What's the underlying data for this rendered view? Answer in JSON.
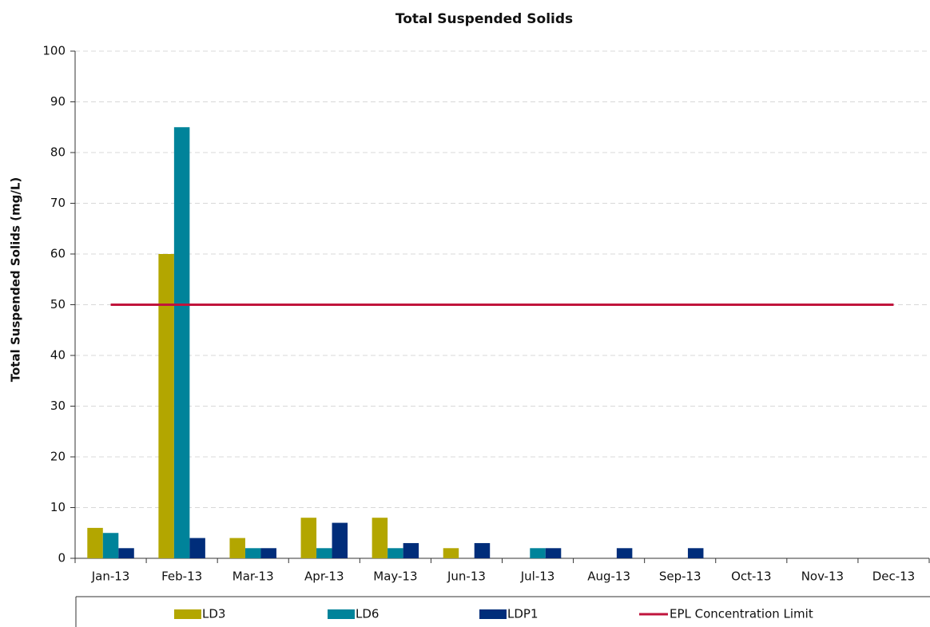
{
  "chart_data": {
    "type": "bar",
    "title": "Total Suspended Solids",
    "y_label": "Total Suspended Solids (mg/L)",
    "categories": [
      "Jan-13",
      "Feb-13",
      "Mar-13",
      "Apr-13",
      "May-13",
      "Jun-13",
      "Jul-13",
      "Aug-13",
      "Sep-13",
      "Oct-13",
      "Nov-13",
      "Dec-13"
    ],
    "series": [
      {
        "name": "LD3",
        "color": "#b3a600",
        "values": [
          6,
          60,
          4,
          8,
          8,
          2,
          null,
          null,
          null,
          null,
          null,
          null
        ]
      },
      {
        "name": "LD6",
        "color": "#00839a",
        "values": [
          5,
          85,
          2,
          2,
          2,
          null,
          2,
          null,
          null,
          null,
          null,
          null
        ]
      },
      {
        "name": "LDP1",
        "color": "#002d7a",
        "values": [
          2,
          4,
          2,
          7,
          3,
          3,
          2,
          2,
          2,
          null,
          null,
          null
        ]
      },
      {
        "name": "EPL Concentration Limit",
        "color": "#c0143c",
        "type": "line",
        "values": [
          50,
          50,
          50,
          50,
          50,
          50,
          50,
          50,
          50,
          50,
          50,
          50
        ]
      }
    ],
    "ylim": [
      0,
      100
    ],
    "yticks": [
      0,
      10,
      20,
      30,
      40,
      50,
      60,
      70,
      80,
      90,
      100
    ],
    "grid": true,
    "legend": "bottom"
  }
}
